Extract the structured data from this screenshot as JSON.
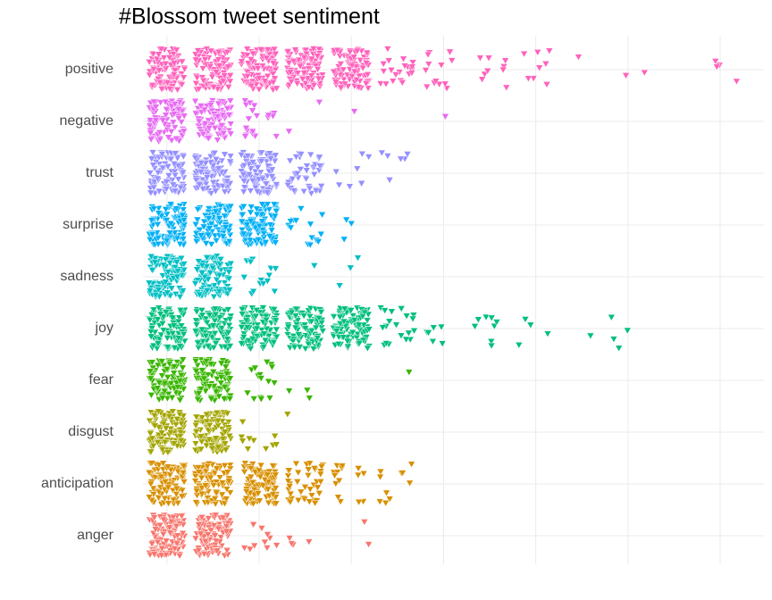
{
  "chart_data": {
    "type": "jitter",
    "title": "#Blossom tweet sentiment",
    "categories": [
      "positive",
      "negative",
      "trust",
      "surprise",
      "sadness",
      "joy",
      "fear",
      "disgust",
      "anticipation",
      "anger"
    ],
    "xlim": [
      0.48,
      13.95
    ],
    "xticks": [
      1,
      3,
      5,
      7,
      9,
      11,
      13
    ],
    "grid": true,
    "series": [
      {
        "color": "#FF62BC",
        "x": [
          1,
          2,
          3,
          4,
          5,
          6,
          7,
          8,
          9,
          10,
          11,
          13
        ],
        "counts": [
          100,
          100,
          100,
          100,
          100,
          20,
          14,
          9,
          8,
          1,
          2,
          4
        ]
      },
      {
        "color": "#E76BF3",
        "x": [
          1,
          2,
          3,
          4,
          5,
          7
        ],
        "counts": [
          100,
          100,
          20,
          2,
          1,
          1
        ]
      },
      {
        "color": "#9590FF",
        "x": [
          1,
          2,
          3,
          4,
          5,
          6
        ],
        "counts": [
          100,
          100,
          100,
          40,
          8,
          6
        ]
      },
      {
        "color": "#00B0F6",
        "x": [
          1,
          2,
          3,
          4,
          5
        ],
        "counts": [
          100,
          100,
          100,
          14,
          3
        ]
      },
      {
        "color": "#00BFC4",
        "x": [
          1,
          2,
          3,
          4,
          5
        ],
        "counts": [
          100,
          100,
          15,
          1,
          3
        ]
      },
      {
        "color": "#00BF7D",
        "x": [
          1,
          2,
          3,
          4,
          5,
          6,
          7,
          8,
          9,
          10,
          11
        ],
        "counts": [
          100,
          100,
          100,
          100,
          100,
          20,
          6,
          8,
          4,
          1,
          4
        ]
      },
      {
        "color": "#39B600",
        "x": [
          1,
          2,
          3,
          4,
          6
        ],
        "counts": [
          100,
          100,
          15,
          3,
          1
        ]
      },
      {
        "color": "#A3A500",
        "x": [
          1,
          2,
          3,
          4
        ],
        "counts": [
          100,
          100,
          10,
          1
        ]
      },
      {
        "color": "#D89000",
        "x": [
          1,
          2,
          3,
          4,
          5,
          6
        ],
        "counts": [
          100,
          100,
          100,
          40,
          15,
          10
        ]
      },
      {
        "color": "#F8766D",
        "x": [
          1,
          2,
          3,
          4,
          5
        ],
        "counts": [
          100,
          100,
          10,
          4,
          2
        ]
      }
    ]
  }
}
